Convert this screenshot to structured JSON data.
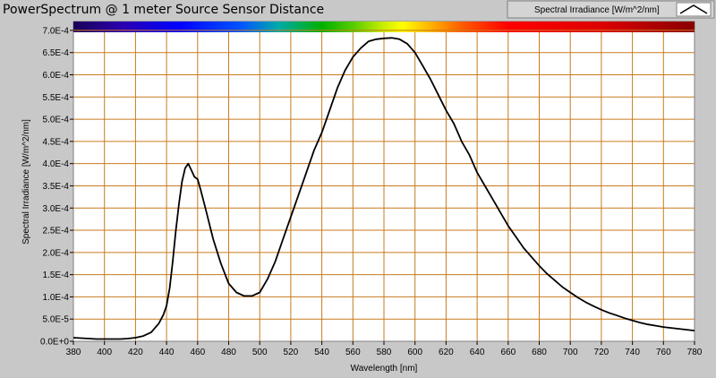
{
  "chart_data": {
    "type": "line",
    "title": "PowerSpectrum @ 1 meter Source Sensor Distance",
    "xlabel": "Wavelength [nm]",
    "ylabel": "Spectral Irradiance [W/m^2/nm]",
    "xlim": [
      380,
      780
    ],
    "ylim": [
      0,
      0.00072
    ],
    "x_ticks": [
      380,
      400,
      420,
      440,
      460,
      480,
      500,
      520,
      540,
      560,
      580,
      600,
      620,
      640,
      660,
      680,
      700,
      720,
      740,
      760,
      780
    ],
    "x_tick_labels": [
      "380",
      "400",
      "420",
      "440",
      "460",
      "480",
      "500",
      "520",
      "540",
      "560",
      "580",
      "600",
      "620",
      "640",
      "660",
      "680",
      "700",
      "720",
      "740",
      "760",
      "780"
    ],
    "y_ticks": [
      0,
      5e-05,
      0.0001,
      0.00015,
      0.0002,
      0.00025,
      0.0003,
      0.00035,
      0.0004,
      0.00045,
      0.0005,
      0.00055,
      0.0006,
      0.00065,
      0.0007
    ],
    "y_tick_labels": [
      "0.0E+0",
      "5.0E-5",
      "1.0E-4",
      "1.5E-4",
      "2.0E-4",
      "2.5E-4",
      "3.0E-4",
      "3.5E-4",
      "4.0E-4",
      "4.5E-4",
      "5.0E-4",
      "5.5E-4",
      "6.0E-4",
      "6.5E-4",
      "7.0E-4"
    ],
    "grid": true,
    "legend": "top-right",
    "line_color": "#000000",
    "grid_color": "#c87a1e",
    "plot_background": "#ffffff",
    "series": [
      {
        "name": "Spectral Irradiance [W/m^2/nm]",
        "x": [
          380,
          385,
          390,
          395,
          400,
          405,
          410,
          415,
          420,
          425,
          430,
          435,
          438,
          440,
          442,
          444,
          446,
          448,
          450,
          452,
          454,
          456,
          458,
          460,
          462,
          465,
          470,
          475,
          480,
          485,
          490,
          495,
          500,
          505,
          510,
          515,
          520,
          525,
          530,
          535,
          540,
          545,
          550,
          555,
          560,
          565,
          570,
          575,
          580,
          585,
          590,
          595,
          600,
          605,
          610,
          615,
          620,
          625,
          630,
          635,
          640,
          645,
          650,
          655,
          660,
          665,
          670,
          675,
          680,
          685,
          690,
          695,
          700,
          705,
          710,
          715,
          720,
          725,
          730,
          735,
          740,
          745,
          750,
          755,
          760,
          765,
          770,
          775,
          780
        ],
        "y": [
          8e-06,
          7e-06,
          6e-06,
          5e-06,
          5e-06,
          5e-06,
          5e-06,
          6e-06,
          8e-06,
          1.2e-05,
          2e-05,
          4e-05,
          6e-05,
          8e-05,
          0.00012,
          0.00018,
          0.00025,
          0.00031,
          0.00036,
          0.00039,
          0.0004,
          0.000385,
          0.00037,
          0.000365,
          0.00034,
          0.0003,
          0.00023,
          0.000175,
          0.00013,
          0.00011,
          0.000102,
          0.000102,
          0.00011,
          0.00014,
          0.00018,
          0.00023,
          0.00028,
          0.00033,
          0.00038,
          0.00043,
          0.00047,
          0.00052,
          0.00057,
          0.00061,
          0.00064,
          0.00066,
          0.000675,
          0.00068,
          0.000682,
          0.000683,
          0.00068,
          0.00067,
          0.00065,
          0.00062,
          0.00059,
          0.000555,
          0.00052,
          0.00049,
          0.00045,
          0.00042,
          0.00038,
          0.00035,
          0.00032,
          0.00029,
          0.00026,
          0.000235,
          0.00021,
          0.00019,
          0.00017,
          0.000152,
          0.000137,
          0.000122,
          0.00011,
          9.8e-05,
          8.8e-05,
          7.9e-05,
          7.1e-05,
          6.4e-05,
          5.8e-05,
          5.2e-05,
          4.7e-05,
          4.2e-05,
          3.8e-05,
          3.5e-05,
          3.2e-05,
          3e-05,
          2.8e-05,
          2.6e-05,
          2.4e-05
        ]
      }
    ]
  }
}
